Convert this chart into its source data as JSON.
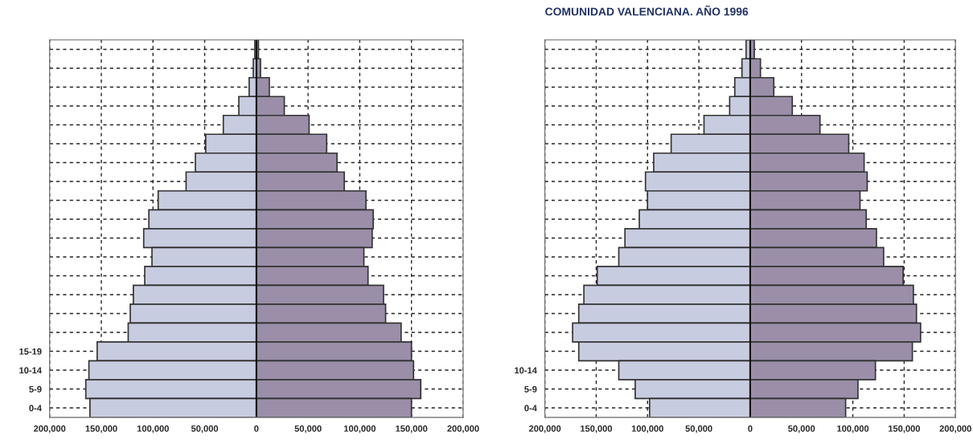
{
  "chart_data": [
    {
      "type": "bar",
      "orientation": "horizontal",
      "stacked": true,
      "categories": [
        null,
        null,
        null,
        null,
        null,
        null,
        null,
        null,
        null,
        null,
        null,
        null,
        null,
        null,
        null,
        null,
        "15-19",
        "10-14",
        "5-9",
        "0-4"
      ],
      "series": [
        {
          "color": "#c8cce0",
          "values": [
            -1500,
            -3000,
            -7000,
            -17000,
            -32000,
            -49000,
            -59000,
            -68000,
            -95000,
            -104000,
            -109000,
            -101000,
            -108000,
            -119000,
            -122000,
            -124000,
            -154000,
            -162000,
            -165000,
            -161000
          ]
        },
        {
          "color": "#9a8ea8",
          "values": [
            2000,
            4000,
            12500,
            27000,
            51000,
            68000,
            78000,
            85000,
            106000,
            113000,
            112000,
            104000,
            108000,
            123000,
            125000,
            140000,
            150000,
            152000,
            159000,
            150000
          ]
        }
      ],
      "xlim": [
        -200000,
        200000
      ],
      "xticks": [
        {
          "value": -200000,
          "label": "200,000"
        },
        {
          "value": -150000,
          "label": "150,000"
        },
        {
          "value": -100000,
          "label": "100,000"
        },
        {
          "value": -50000,
          "label": "50,000"
        },
        0,
        {
          "value": 50000,
          "label": "50,000"
        },
        {
          "value": 100000,
          "label": "100,000"
        },
        {
          "value": 150000,
          "label": "150,000"
        },
        {
          "value": 200000,
          "label": "200,000"
        }
      ],
      "grid": true
    },
    {
      "type": "bar",
      "orientation": "horizontal",
      "stacked": true,
      "title": "COMUNIDAD VALENCIANA. AÑO 1996",
      "categories": [
        null,
        null,
        null,
        null,
        null,
        null,
        null,
        null,
        null,
        null,
        null,
        null,
        null,
        null,
        null,
        null,
        null,
        "10-14",
        "5-9",
        "0-4"
      ],
      "series": [
        {
          "color": "#c8cce0",
          "values": [
            -4000,
            -8000,
            -15000,
            -20000,
            -45000,
            -77000,
            -94000,
            -102000,
            -100000,
            -108000,
            -122000,
            -128000,
            -149000,
            -162000,
            -167000,
            -173000,
            -167000,
            -128000,
            -112000,
            -98000
          ]
        },
        {
          "color": "#9a8ea8",
          "values": [
            4000,
            10000,
            23000,
            41000,
            68000,
            96000,
            111000,
            114000,
            107000,
            113000,
            123000,
            130000,
            149000,
            159000,
            162000,
            166000,
            158000,
            122000,
            105000,
            93000
          ]
        }
      ],
      "xlim": [
        -200000,
        200000
      ],
      "xticks": [
        {
          "value": -200000,
          "label": "200,000"
        },
        {
          "value": -150000,
          "label": "150,000"
        },
        {
          "value": -100000,
          "label": "100,000"
        },
        {
          "value": -50000,
          "label": "50,000"
        },
        0,
        {
          "value": 50000,
          "label": "50,000"
        },
        {
          "value": 100000,
          "label": "100,000"
        },
        {
          "value": 150000,
          "label": "150,000"
        },
        {
          "value": 200000,
          "label": "200,000"
        }
      ],
      "grid": true
    }
  ]
}
